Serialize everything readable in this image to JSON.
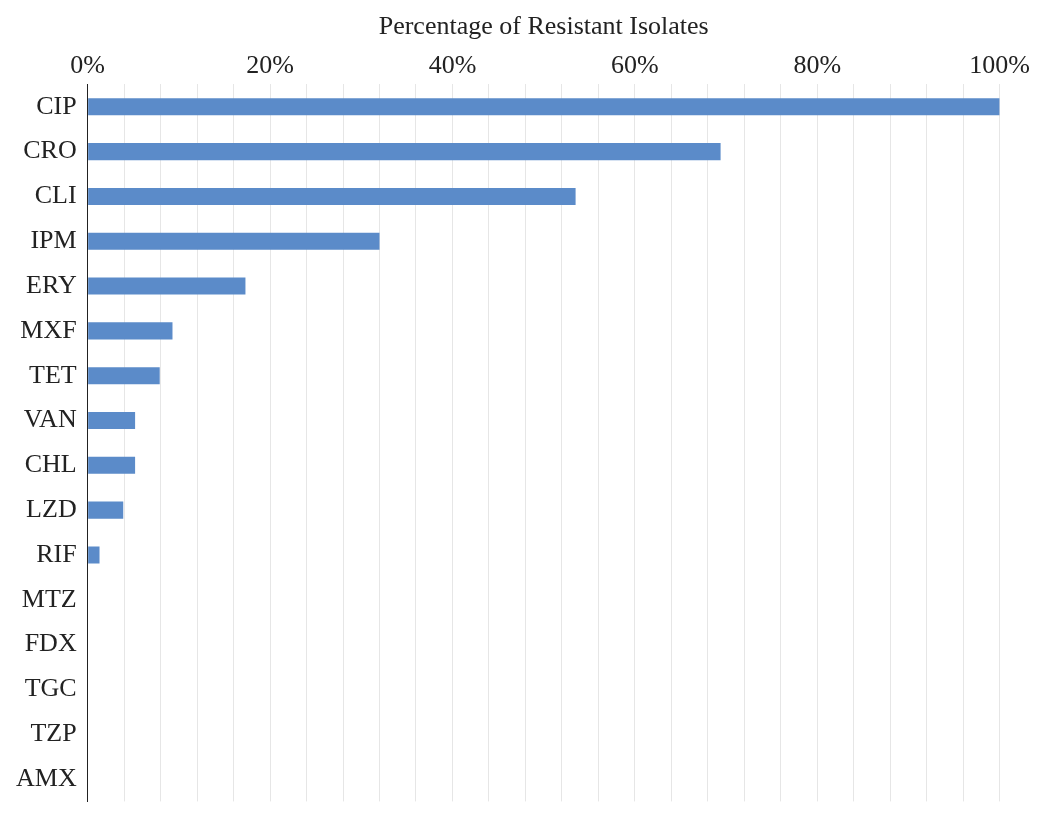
{
  "chart_data": {
    "type": "bar",
    "orientation": "horizontal",
    "xlabel": "Percentage of Resistant Isolates",
    "categories": [
      "CIP",
      "CRO",
      "CLI",
      "IPM",
      "ERY",
      "MXF",
      "TET",
      "VAN",
      "CHL",
      "LZD",
      "RIF",
      "MTZ",
      "FDX",
      "TGC",
      "TZP",
      "AMX"
    ],
    "values": [
      100,
      69.4,
      53.5,
      32,
      17.3,
      9.3,
      7.9,
      5.2,
      5.2,
      3.9,
      1.3,
      0,
      0,
      0,
      0,
      0
    ],
    "color": "#5b8bc9",
    "xlim": [
      0,
      100
    ],
    "xticks": [
      {
        "value": 0,
        "label": "0%"
      },
      {
        "value": 4,
        "label": null
      },
      {
        "value": 8,
        "label": null
      },
      {
        "value": 12,
        "label": null
      },
      {
        "value": 16,
        "label": null
      },
      {
        "value": 20,
        "label": "20%"
      },
      {
        "value": 24,
        "label": null
      },
      {
        "value": 28,
        "label": null
      },
      {
        "value": 32,
        "label": null
      },
      {
        "value": 36,
        "label": null
      },
      {
        "value": 40,
        "label": "40%"
      },
      {
        "value": 44,
        "label": null
      },
      {
        "value": 48,
        "label": null
      },
      {
        "value": 52,
        "label": null
      },
      {
        "value": 56,
        "label": null
      },
      {
        "value": 60,
        "label": "60%"
      },
      {
        "value": 64,
        "label": null
      },
      {
        "value": 68,
        "label": null
      },
      {
        "value": 72,
        "label": null
      },
      {
        "value": 76,
        "label": null
      },
      {
        "value": 80,
        "label": "80%"
      },
      {
        "value": 84,
        "label": null
      },
      {
        "value": 88,
        "label": null
      },
      {
        "value": 92,
        "label": null
      },
      {
        "value": 96,
        "label": null
      },
      {
        "value": 100,
        "label": "100%"
      }
    ],
    "grid": "x",
    "legend": false
  }
}
